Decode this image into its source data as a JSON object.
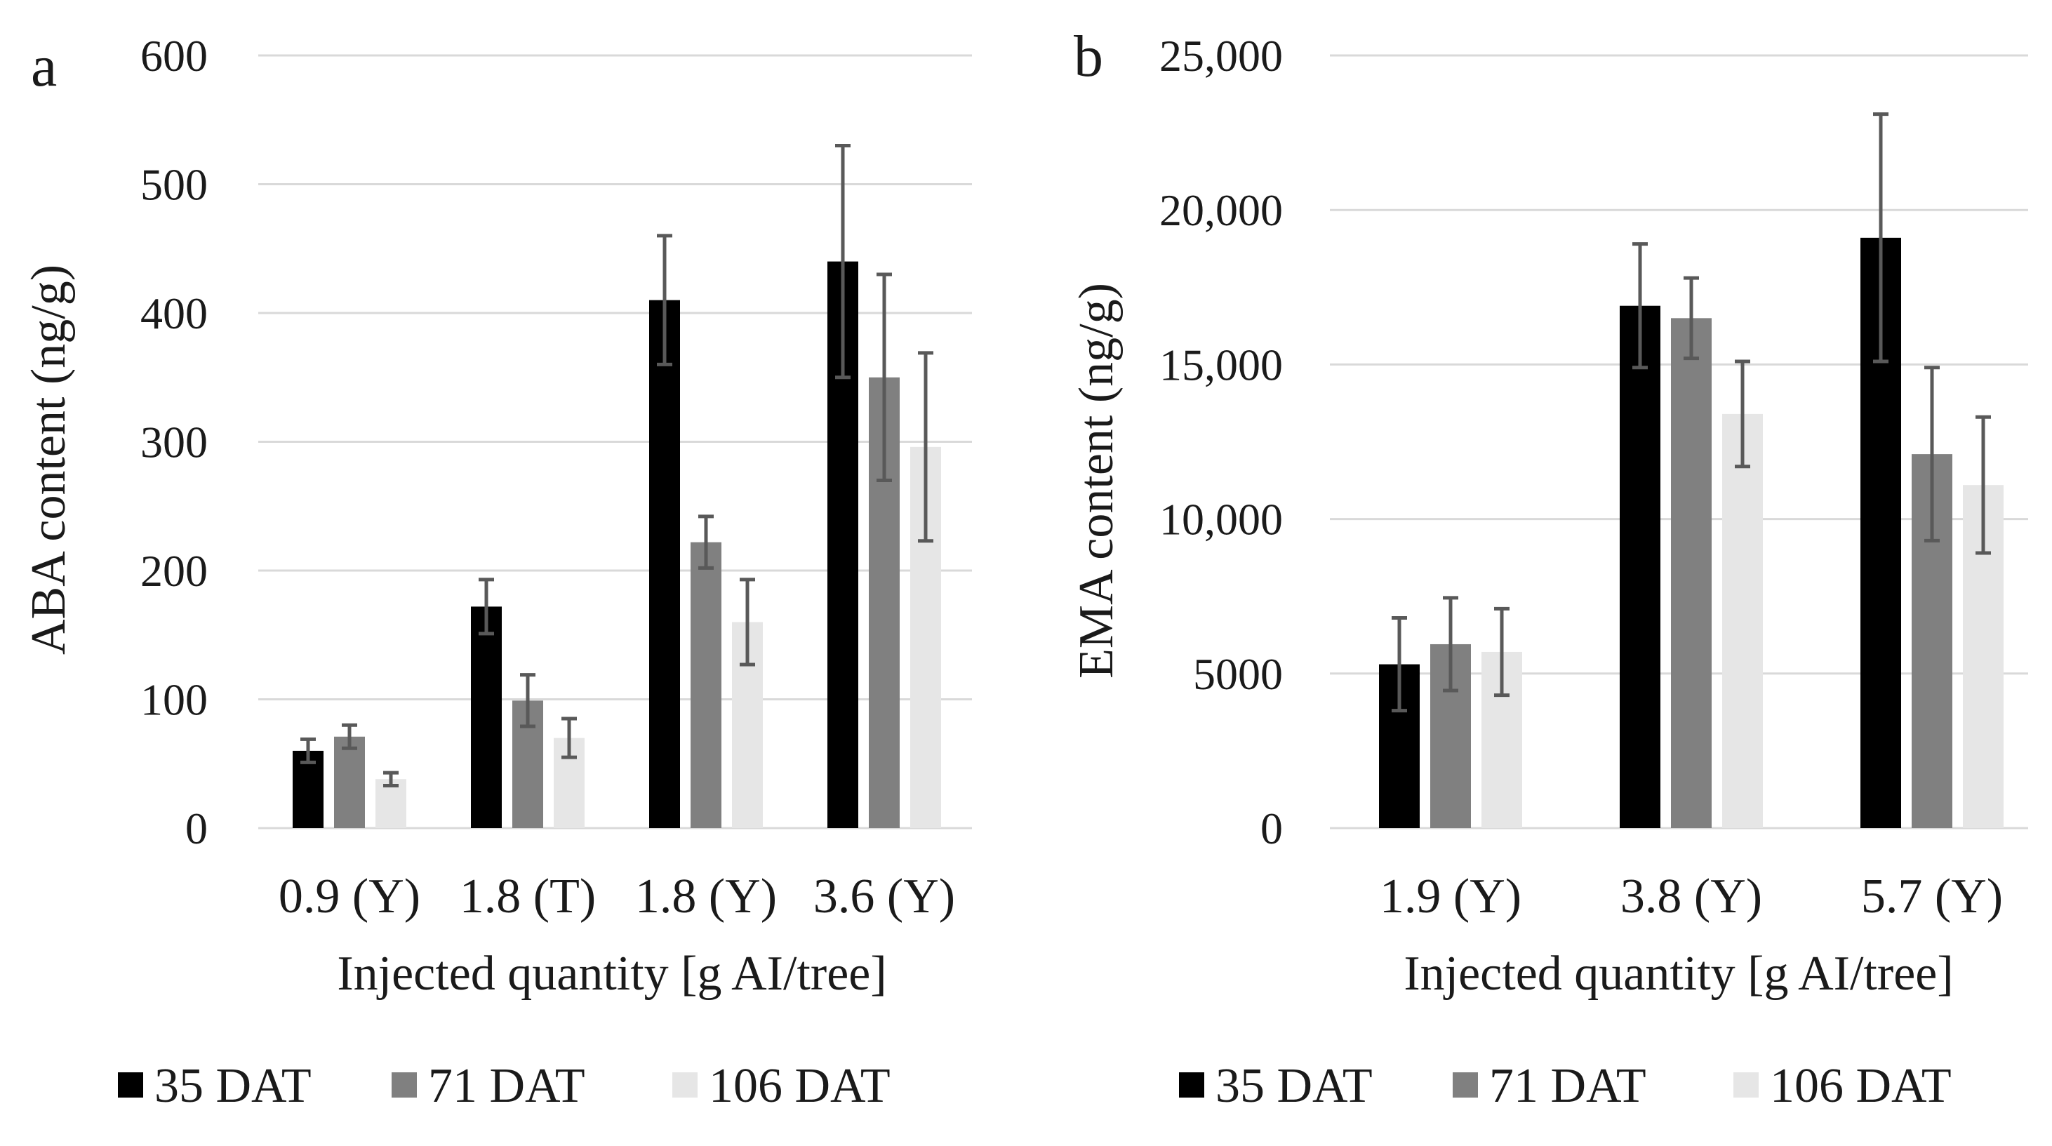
{
  "chart_data": [
    {
      "type": "bar",
      "panel": "a",
      "categories": [
        "0.9 (Y)",
        "1.8 (T)",
        "1.8 (Y)",
        "3.6 (Y)"
      ],
      "series": [
        {
          "name": "35 DAT",
          "color": "#000000",
          "values": [
            60,
            172,
            410,
            440
          ],
          "err": [
            9,
            21,
            50,
            90
          ]
        },
        {
          "name": "71 DAT",
          "color": "#808080",
          "values": [
            71,
            99,
            222,
            350
          ],
          "err": [
            9,
            20,
            20,
            80
          ]
        },
        {
          "name": "106 DAT",
          "color": "#e6e6e6",
          "values": [
            38,
            70,
            160,
            296
          ],
          "err": [
            5,
            15,
            33,
            73
          ]
        }
      ],
      "xlabel": "Injected quantity [g AI/tree]",
      "ylabel": "ABA content (ng/g)",
      "ylim": [
        0,
        600
      ],
      "yticks": [
        0,
        100,
        200,
        300,
        400,
        500,
        600
      ],
      "ytick_labels": [
        "0",
        "100",
        "200",
        "300",
        "400",
        "500",
        "600"
      ],
      "grid": true,
      "legend_position": "bottom"
    },
    {
      "type": "bar",
      "panel": "b",
      "categories": [
        "1.9 (Y)",
        "3.8 (Y)",
        "5.7 (Y)"
      ],
      "series": [
        {
          "name": "35 DAT",
          "color": "#000000",
          "values": [
            5300,
            16900,
            19100
          ],
          "err": [
            1500,
            2000,
            4000
          ]
        },
        {
          "name": "71 DAT",
          "color": "#808080",
          "values": [
            5950,
            16500,
            12100
          ],
          "err": [
            1500,
            1300,
            2800
          ]
        },
        {
          "name": "106 DAT",
          "color": "#e6e6e6",
          "values": [
            5700,
            13400,
            11100
          ],
          "err": [
            1400,
            1700,
            2200
          ]
        }
      ],
      "xlabel": "Injected quantity [g AI/tree]",
      "ylabel": "EMA content (ng/g)",
      "ylim": [
        0,
        25000
      ],
      "yticks": [
        0,
        5000,
        10000,
        15000,
        20000,
        25000
      ],
      "ytick_labels": [
        "0",
        "5000",
        "10,000",
        "15,000",
        "20,000",
        "25,000"
      ],
      "grid": true,
      "legend_position": "bottom"
    }
  ]
}
